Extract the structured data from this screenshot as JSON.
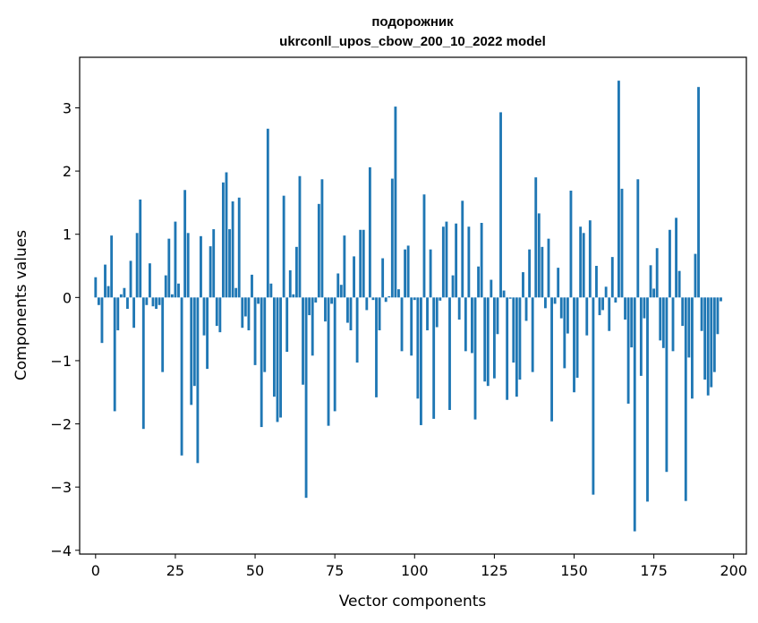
{
  "chart_data": {
    "type": "bar",
    "title": "подорожник",
    "subtitle": "ukrconll_upos_cbow_200_10_2022 model",
    "xlabel": "Vector components",
    "ylabel": "Components values",
    "xlim": [
      -5,
      204
    ],
    "ylim": [
      -4.06,
      3.8
    ],
    "xticks": [
      0,
      25,
      50,
      75,
      100,
      125,
      150,
      175,
      200
    ],
    "yticks": [
      -4,
      -3,
      -2,
      -1,
      0,
      1,
      2,
      3
    ],
    "ytick_labels": [
      "−4",
      "−3",
      "−2",
      "−1",
      "0",
      "1",
      "2",
      "3"
    ],
    "bar_color": "#1f77b4",
    "values": [
      0.32,
      -0.12,
      -0.72,
      0.52,
      0.18,
      0.98,
      -1.8,
      -0.52,
      0.05,
      0.15,
      -0.18,
      0.58,
      -0.48,
      1.02,
      1.55,
      -2.08,
      -0.12,
      0.54,
      -0.14,
      -0.18,
      -0.12,
      -1.18,
      0.35,
      0.93,
      0.05,
      1.2,
      0.22,
      -2.5,
      1.7,
      1.02,
      -1.7,
      -1.4,
      -2.62,
      0.97,
      -0.6,
      -1.13,
      0.81,
      1.08,
      -0.45,
      -0.55,
      1.82,
      1.98,
      1.08,
      1.52,
      0.15,
      1.58,
      -0.48,
      -0.3,
      -0.52,
      0.36,
      -1.07,
      -0.1,
      -2.05,
      -1.18,
      2.67,
      0.22,
      -1.57,
      -1.97,
      -1.9,
      1.61,
      -0.86,
      0.43,
      0.05,
      0.8,
      1.92,
      -1.38,
      -3.17,
      -0.28,
      -0.92,
      -0.08,
      1.48,
      1.87,
      -0.38,
      -2.03,
      -0.1,
      -1.8,
      0.38,
      0.2,
      0.98,
      -0.4,
      -0.52,
      0.65,
      -1.03,
      1.07,
      1.07,
      -0.2,
      2.06,
      -0.04,
      -1.58,
      -0.52,
      0.62,
      -0.07,
      0.02,
      1.88,
      3.02,
      0.13,
      -0.85,
      0.76,
      0.82,
      -0.92,
      -0.04,
      -1.6,
      -2.02,
      1.63,
      -0.52,
      0.76,
      -1.92,
      -0.47,
      -0.05,
      1.12,
      1.2,
      -1.78,
      0.35,
      1.17,
      -0.35,
      1.53,
      -0.85,
      1.12,
      -0.88,
      -1.93,
      0.49,
      1.18,
      -1.33,
      -1.4,
      0.28,
      -1.28,
      -0.58,
      2.93,
      0.11,
      -1.62,
      -0.02,
      -1.03,
      -1.57,
      -1.3,
      0.4,
      -0.37,
      0.76,
      -1.18,
      1.9,
      1.33,
      0.8,
      -0.17,
      0.93,
      -1.96,
      -0.1,
      0.47,
      -0.33,
      -1.12,
      -0.57,
      1.69,
      -1.5,
      -1.27,
      1.12,
      1.02,
      -0.6,
      1.22,
      -3.12,
      0.5,
      -0.28,
      -0.2,
      0.17,
      -0.53,
      0.64,
      -0.08,
      3.43,
      1.72,
      -0.35,
      -1.68,
      -0.79,
      -3.7,
      1.87,
      -1.24,
      -0.33,
      -3.23,
      0.51,
      0.14,
      0.78,
      -0.68,
      -0.8,
      -2.76,
      1.07,
      -0.85,
      1.26,
      0.42,
      -0.45,
      -3.22,
      -0.95,
      -1.6,
      0.69,
      3.33,
      -0.53,
      -1.3,
      -1.55,
      -1.42,
      -1.18,
      -0.58,
      -0.06
    ]
  }
}
